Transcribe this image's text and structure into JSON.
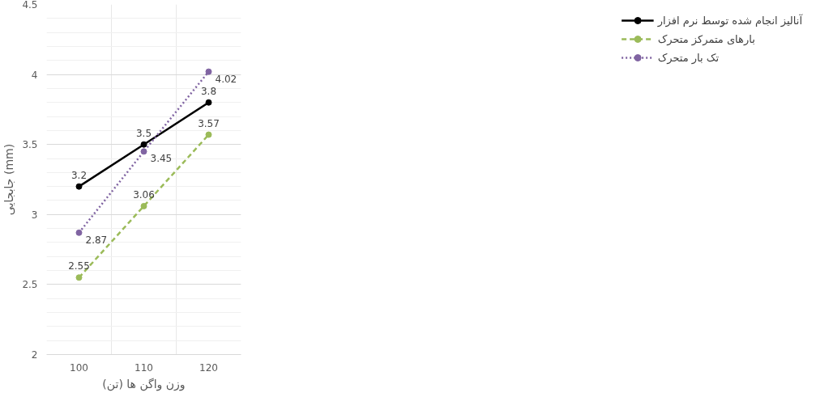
{
  "chart_data": {
    "type": "line",
    "xlabel": "وزن واگن ها (تن)",
    "ylabel": "جابجایی (mm)",
    "categories": [
      "100",
      "110",
      "120"
    ],
    "ylim": [
      2,
      4.5
    ],
    "yticks": [
      2,
      2.5,
      3,
      3.5,
      4,
      4.5
    ],
    "grid": true,
    "legend": "right",
    "marker": "circle",
    "data_labels": true,
    "series": [
      {
        "name": "آنالیز انجام شده توسط نرم افزار",
        "color": "#000000",
        "line_style": "solid",
        "values": [
          3.2,
          3.5,
          3.8
        ]
      },
      {
        "name": "بارهای متمرکز متحرک",
        "color": "#9bbb59",
        "line_style": "dashed",
        "values": [
          2.55,
          3.06,
          3.57
        ]
      },
      {
        "name": "تک بار متحرک",
        "color": "#8064a2",
        "line_style": "dotted",
        "values": [
          2.87,
          3.45,
          4.02
        ]
      }
    ]
  }
}
